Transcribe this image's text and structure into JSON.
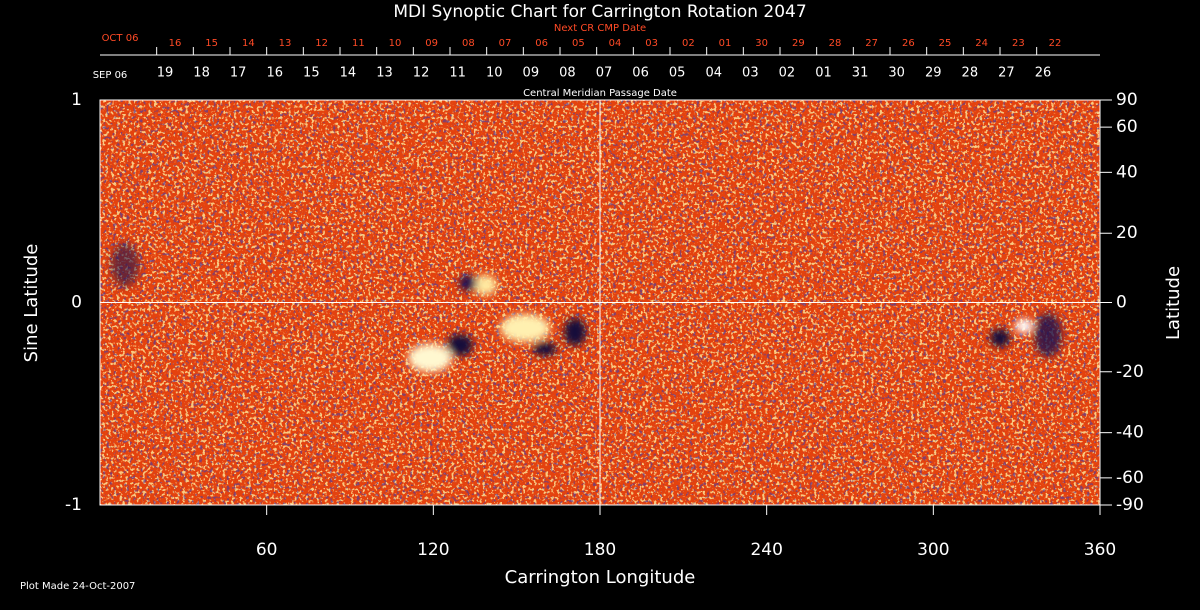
{
  "chart_data": {
    "type": "synoptic_map",
    "title": "MDI Synoptic Chart for Carrington Rotation 2047",
    "xlabel": "Carrington Longitude",
    "xlim": [
      0,
      360
    ],
    "xticks": [
      60,
      120,
      180,
      240,
      300,
      360
    ],
    "ylabel": "Sine Latitude",
    "ylim": [
      -1,
      1
    ],
    "yticks": [
      -1,
      0,
      1
    ],
    "y2label": "Latitude",
    "y2lim": [
      -90,
      90
    ],
    "y2scale": "sine",
    "y2ticks": [
      90,
      60,
      40,
      20,
      0,
      -20,
      -40,
      -60,
      -90
    ],
    "reference_lines": {
      "x": 180,
      "y": 0
    },
    "top_axes": [
      {
        "label": "Next CR CMP Date",
        "start_label": "OCT 06",
        "color": "#ff4a26",
        "dates": [
          "16",
          "15",
          "14",
          "13",
          "12",
          "11",
          "10",
          "09",
          "08",
          "07",
          "06",
          "05",
          "04",
          "03",
          "02",
          "01",
          "30",
          "29",
          "28",
          "27",
          "26",
          "25",
          "24",
          "23",
          "22"
        ]
      },
      {
        "label": "Central Meridian Passage Date",
        "start_label": "SEP 06",
        "color": "#ffffff",
        "dates": [
          "19",
          "18",
          "17",
          "16",
          "15",
          "14",
          "13",
          "12",
          "11",
          "10",
          "09",
          "08",
          "07",
          "06",
          "05",
          "04",
          "03",
          "02",
          "01",
          "31",
          "30",
          "29",
          "28",
          "27",
          "26"
        ]
      }
    ]
  },
  "footer": "Plot Made 24-Oct-2007"
}
